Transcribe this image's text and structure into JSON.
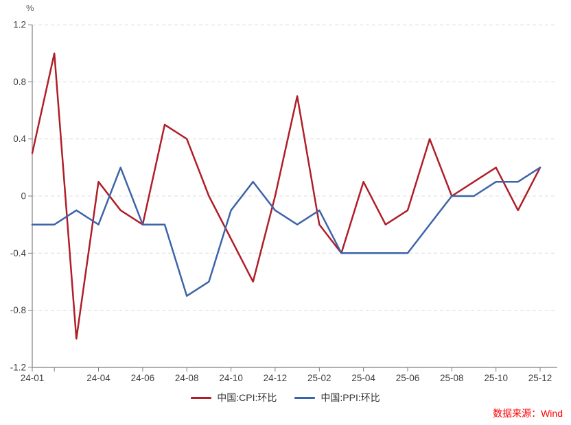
{
  "unit_label": "%",
  "source_note": "数据来源：Wind",
  "colors": {
    "cpi_red": "#B01E28",
    "ppi_blue": "#3C64A8",
    "grid": "#DCDCDC",
    "axis": "#7F7F7F",
    "tick_text": "#404040",
    "source_red": "#FF0000"
  },
  "chart_data": {
    "type": "line",
    "title": "",
    "xlabel": "",
    "ylabel": "%",
    "ylim": [
      -1.2,
      1.2
    ],
    "yticks": [
      "1.2",
      "0.8",
      "0.4",
      "0",
      "-0.4",
      "-0.8",
      "-1.2"
    ],
    "grid": "horizontal-dashed",
    "legend_position": "bottom-center",
    "x": [
      "24-01",
      "24-02",
      "24-03",
      "24-04",
      "24-05",
      "24-06",
      "24-07",
      "24-08",
      "24-09",
      "24-10",
      "24-11",
      "24-12",
      "25-01",
      "25-02",
      "25-03",
      "25-04",
      "25-05",
      "25-06",
      "25-07",
      "25-08",
      "25-09",
      "25-10",
      "25-11",
      "25-12"
    ],
    "x_tick_labels": [
      "24-01",
      "24-04",
      "24-06",
      "24-08",
      "24-10",
      "24-12",
      "25-02",
      "25-04",
      "25-06",
      "25-08",
      "25-10",
      "25-12"
    ],
    "series": [
      {
        "id": "cpi",
        "name": "中国:CPI:环比",
        "color": "#B01E28",
        "values": [
          0.3,
          1.0,
          -1.0,
          0.1,
          -0.1,
          -0.2,
          0.5,
          0.4,
          0.0,
          -0.3,
          -0.6,
          0.0,
          0.7,
          -0.2,
          -0.4,
          0.1,
          -0.2,
          -0.1,
          0.4,
          0.0,
          0.1,
          0.2,
          -0.1,
          0.2
        ]
      },
      {
        "id": "ppi",
        "name": "中国:PPI:环比",
        "color": "#3C64A8",
        "values": [
          -0.2,
          -0.2,
          -0.1,
          -0.2,
          0.2,
          -0.2,
          -0.2,
          -0.7,
          -0.6,
          -0.1,
          0.1,
          -0.1,
          -0.2,
          -0.1,
          -0.4,
          -0.4,
          -0.4,
          -0.4,
          -0.2,
          0.0,
          0.0,
          0.1,
          0.1,
          0.2
        ]
      }
    ]
  }
}
